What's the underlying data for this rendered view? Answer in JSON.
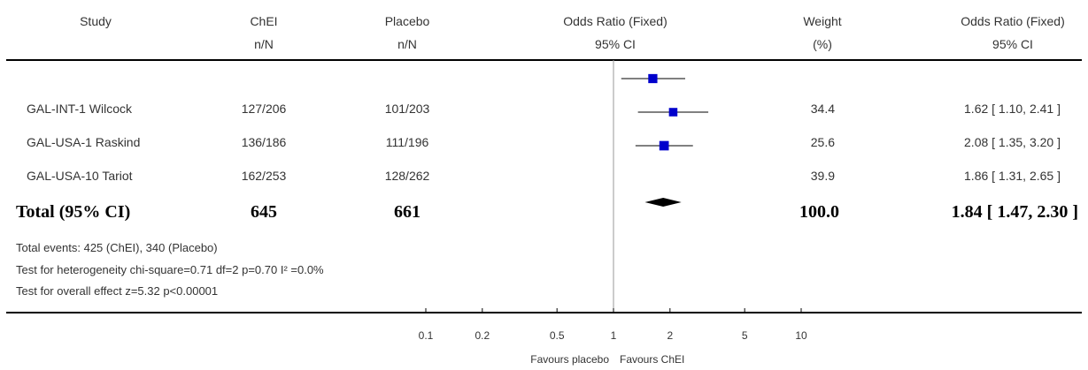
{
  "headers": {
    "study": "Study",
    "treat_line1": "ChEI",
    "treat_line2": "n/N",
    "control_line1": "Placebo",
    "control_line2": "n/N",
    "or_line1": "Odds Ratio (Fixed)",
    "or_line2": "95% CI",
    "weight_line1": "Weight",
    "weight_line2": "(%)",
    "orval_line1": "Odds Ratio (Fixed)",
    "orval_line2": "95% CI"
  },
  "studies": [
    {
      "name": "GAL-INT-1 Wilcock",
      "treat": "127/206",
      "control": "101/203",
      "weight": "34.4",
      "ci_text": "1.62 [ 1.10, 2.41 ]"
    },
    {
      "name": "GAL-USA-1 Raskind",
      "treat": "136/186",
      "control": "111/196",
      "weight": "25.6",
      "ci_text": "2.08 [ 1.35, 3.20 ]"
    },
    {
      "name": "GAL-USA-10 Tariot",
      "treat": "162/253",
      "control": "128/262",
      "weight": "39.9",
      "ci_text": "1.86 [ 1.31, 2.65 ]"
    }
  ],
  "total": {
    "label": "Total (95% CI)",
    "treat": "645",
    "control": "661",
    "weight": "100.0",
    "ci_text": "1.84 [ 1.47, 2.30 ]"
  },
  "footer": {
    "events": "Total events: 425 (ChEI), 340 (Placebo)",
    "heterogeneity": "Test for heterogeneity chi-square=0.71 df=2 p=0.70 I² =0.0%",
    "overall": "Test for overall effect z=5.32   p<0.00001"
  },
  "axis": {
    "ticks": [
      {
        "value": 0.1,
        "label": "0.1"
      },
      {
        "value": 0.2,
        "label": "0.2"
      },
      {
        "value": 0.5,
        "label": "0.5"
      },
      {
        "value": 1,
        "label": "1"
      },
      {
        "value": 2,
        "label": "2"
      },
      {
        "value": 5,
        "label": "5"
      },
      {
        "value": 10,
        "label": "10"
      }
    ],
    "favours_left": "Favours placebo",
    "favours_right": "Favours ChEI"
  },
  "chart_data": {
    "type": "forest",
    "scale": "log",
    "xlim": [
      0.1,
      10
    ],
    "marker_color": "#0000cc",
    "series": [
      {
        "name": "GAL-INT-1 Wilcock",
        "estimate": 1.62,
        "lower": 1.1,
        "upper": 2.41,
        "weight": 34.4
      },
      {
        "name": "GAL-USA-1 Raskind",
        "estimate": 2.08,
        "lower": 1.35,
        "upper": 3.2,
        "weight": 25.6
      },
      {
        "name": "GAL-USA-10 Tariot",
        "estimate": 1.86,
        "lower": 1.31,
        "upper": 2.65,
        "weight": 39.9
      }
    ],
    "pooled": {
      "estimate": 1.84,
      "lower": 1.47,
      "upper": 2.3
    }
  }
}
